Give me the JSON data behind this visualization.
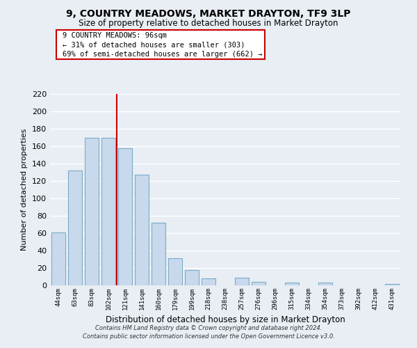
{
  "title": "9, COUNTRY MEADOWS, MARKET DRAYTON, TF9 3LP",
  "subtitle": "Size of property relative to detached houses in Market Drayton",
  "xlabel": "Distribution of detached houses by size in Market Drayton",
  "ylabel": "Number of detached properties",
  "bar_color": "#c8d9ed",
  "bar_edge_color": "#7aaac8",
  "categories": [
    "44sqm",
    "63sqm",
    "83sqm",
    "102sqm",
    "121sqm",
    "141sqm",
    "160sqm",
    "179sqm",
    "199sqm",
    "218sqm",
    "238sqm",
    "257sqm",
    "276sqm",
    "296sqm",
    "315sqm",
    "334sqm",
    "354sqm",
    "373sqm",
    "392sqm",
    "412sqm",
    "431sqm"
  ],
  "values": [
    61,
    132,
    170,
    170,
    158,
    127,
    72,
    31,
    18,
    8,
    0,
    9,
    4,
    0,
    3,
    0,
    3,
    0,
    0,
    0,
    2
  ],
  "ylim": [
    0,
    220
  ],
  "yticks": [
    0,
    20,
    40,
    60,
    80,
    100,
    120,
    140,
    160,
    180,
    200,
    220
  ],
  "property_line_x": 3.5,
  "annotation_title": "9 COUNTRY MEADOWS: 96sqm",
  "annotation_line1": "← 31% of detached houses are smaller (303)",
  "annotation_line2": "69% of semi-detached houses are larger (662) →",
  "footer_line1": "Contains HM Land Registry data © Crown copyright and database right 2024.",
  "footer_line2": "Contains public sector information licensed under the Open Government Licence v3.0.",
  "background_color": "#e8eef4",
  "grid_color": "#ffffff",
  "red_line_color": "#cc0000"
}
